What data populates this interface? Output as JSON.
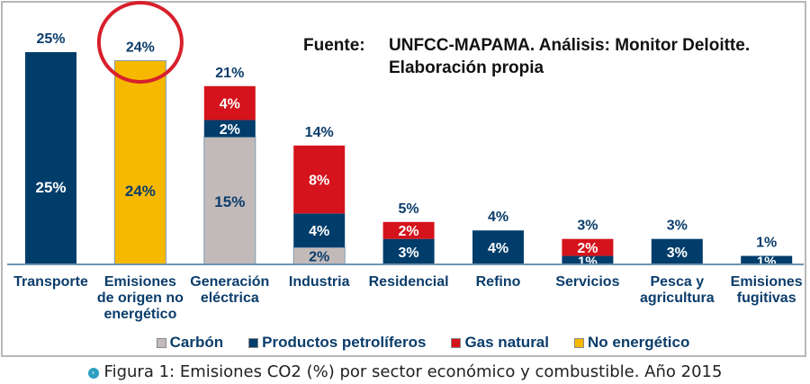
{
  "chart_data": {
    "type": "bar",
    "stacked": true,
    "title": "Emisiones CO2 (%) por sector económico y combustible. Año 2015",
    "source_line1_label": "Fuente:",
    "source_line1_text": "UNFCC-MAPAMA. Análisis: Monitor Deloitte.",
    "source_line2_text": "Elaboración propia",
    "categories": [
      [
        "Transporte"
      ],
      [
        "Emisiones",
        "de origen no",
        "energético"
      ],
      [
        "Generación",
        "eléctrica"
      ],
      [
        "Industria"
      ],
      [
        "Residencial"
      ],
      [
        "Refino"
      ],
      [
        "Servicios"
      ],
      [
        "Pesca y",
        "agricultura"
      ],
      [
        "Emisiones",
        "fugitivas"
      ]
    ],
    "totals": [
      25,
      24,
      21,
      14,
      5,
      4,
      3,
      3,
      1
    ],
    "total_labels": [
      "25%",
      "24%",
      "21%",
      "14%",
      "5%",
      "4%",
      "3%",
      "3%",
      "1%"
    ],
    "series": [
      {
        "name": "Carbón",
        "color": "#c2bab9",
        "label_color": "#0b3d6b",
        "values": [
          0,
          0,
          15,
          2,
          0,
          0,
          0,
          0,
          0
        ],
        "labels": [
          "",
          "",
          "15%",
          "2%",
          "",
          "",
          "",
          "",
          ""
        ]
      },
      {
        "name": "Productos petrolíferos",
        "color": "#003d6b",
        "label_color": "#ffffff",
        "values": [
          25,
          0,
          2,
          4,
          3,
          4,
          1,
          3,
          1
        ],
        "labels": [
          "25%",
          "",
          "2%",
          "4%",
          "3%",
          "4%",
          "1%",
          "3%",
          "1%"
        ]
      },
      {
        "name": "Gas natural",
        "color": "#d4131c",
        "label_color": "#ffffff",
        "values": [
          0,
          0,
          4,
          8,
          2,
          0,
          2,
          0,
          0
        ],
        "labels": [
          "",
          "",
          "4%",
          "8%",
          "2%",
          "",
          "2%",
          "",
          ""
        ]
      },
      {
        "name": "No energético",
        "color": "#f6b900",
        "label_color": "#0b3d6b",
        "values": [
          0,
          24,
          0,
          0,
          0,
          0,
          0,
          0,
          0
        ],
        "labels": [
          "",
          "24%",
          "",
          "",
          "",
          "",
          "",
          "",
          ""
        ]
      }
    ],
    "legend": [
      "Carbón",
      "Productos petrolíferos",
      "Gas natural",
      "No energético"
    ],
    "legend_position": "bottom",
    "highlight": {
      "category_index": 1,
      "shape": "circle",
      "color": "#d7202c"
    },
    "ylim": [
      0,
      25
    ],
    "grid": false
  },
  "source": {
    "label": "Fuente:",
    "line1": "UNFCC-MAPAMA. Análisis: Monitor Deloitte.",
    "line2": "Elaboración propia"
  },
  "legend": [
    {
      "label": "Carbón",
      "color": "#c2bab9"
    },
    {
      "label": "Productos petrolíferos",
      "color": "#003d6b"
    },
    {
      "label": "Gas natural",
      "color": "#d4131c"
    },
    {
      "label": "No energético",
      "color": "#f6b900"
    }
  ],
  "caption": {
    "bullet_icon": "›",
    "text": "Figura 1: Emisiones CO2 (%) por sector económico y combustible. Año 2015"
  }
}
